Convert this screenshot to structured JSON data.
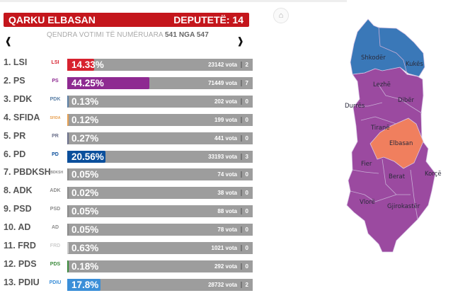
{
  "header": {
    "title": "QARKU ELBASAN",
    "deputies": "DEPUTETË: 14"
  },
  "subtitle": {
    "label": "QENDRA VOTIMI TË NUMËRUARA",
    "counted": "541 NGA 547"
  },
  "nav": {
    "prev_icon": "chevron-left-icon",
    "next_icon": "chevron-right-icon",
    "prev": "‹",
    "next": "›",
    "home_icon": "home-icon",
    "home": "⌂"
  },
  "parties": [
    {
      "name": "1. LSI",
      "logo": "LSI",
      "pct": "14.33%",
      "value": 14.33,
      "votes": "23142 vota",
      "seats": "2",
      "color": "#d7222f"
    },
    {
      "name": "2. PS",
      "logo": "PS",
      "pct": "44.25%",
      "value": 44.25,
      "votes": "71449 vota",
      "seats": "7",
      "color": "#8e2a91"
    },
    {
      "name": "3. PDK",
      "logo": "PDK",
      "pct": "0.13%",
      "value": 0.13,
      "votes": "202 vota",
      "seats": "0",
      "color": "#5a7fa6"
    },
    {
      "name": "4. SFIDA",
      "logo": "SFIDA",
      "pct": "0.12%",
      "value": 0.12,
      "votes": "199 vota",
      "seats": "0",
      "color": "#e8a050"
    },
    {
      "name": "5. PR",
      "logo": "PR",
      "pct": "0.27%",
      "value": 0.27,
      "votes": "441 vota",
      "seats": "0",
      "color": "#6a6f8a"
    },
    {
      "name": "6. PD",
      "logo": "PD",
      "pct": "20.56%",
      "value": 20.56,
      "votes": "33193 vota",
      "seats": "3",
      "color": "#0b4f9c"
    },
    {
      "name": "7. PBDKSH",
      "logo": "PBDKSH",
      "pct": "0.05%",
      "value": 0.05,
      "votes": "74 vota",
      "seats": "0",
      "color": "#8a8a8a"
    },
    {
      "name": "8. ADK",
      "logo": "ADK",
      "pct": "0.02%",
      "value": 0.02,
      "votes": "38 vota",
      "seats": "0",
      "color": "#8a8a8a"
    },
    {
      "name": "9. PSD",
      "logo": "PSD",
      "pct": "0.05%",
      "value": 0.05,
      "votes": "88 vota",
      "seats": "0",
      "color": "#8a8a8a"
    },
    {
      "name": "10. AD",
      "logo": "AD",
      "pct": "0.05%",
      "value": 0.05,
      "votes": "78 vota",
      "seats": "0",
      "color": "#8a8a8a"
    },
    {
      "name": "11. FRD",
      "logo": "FRD",
      "pct": "0.63%",
      "value": 0.63,
      "votes": "1021 vota",
      "seats": "0",
      "color": "#cfcfcf"
    },
    {
      "name": "12. PDS",
      "logo": "PDS",
      "pct": "0.18%",
      "value": 0.18,
      "votes": "292 vota",
      "seats": "0",
      "color": "#3a8a3a"
    },
    {
      "name": "13. PDIU",
      "logo": "PDIU",
      "pct": "17.8%",
      "value": 17.8,
      "votes": "28732 vota",
      "seats": "2",
      "color": "#3b8fd8"
    }
  ],
  "map": {
    "colors": {
      "north": "#3a78b8",
      "south": "#9b4aa0",
      "selected": "#f07f5e"
    },
    "regions": [
      "Shkodër",
      "Kukës",
      "Lezhë",
      "Dibër",
      "Durrës",
      "Tiranë",
      "Elbasan",
      "Fier",
      "Berat",
      "Korçë",
      "Vlorë",
      "Gjirokastër"
    ]
  }
}
